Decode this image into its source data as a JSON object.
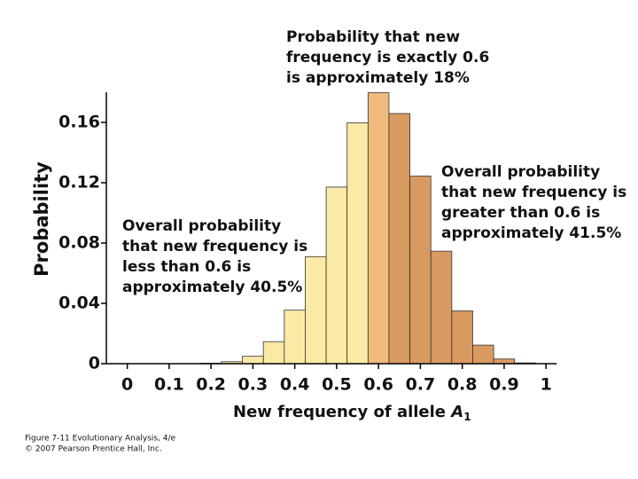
{
  "chart_data": {
    "type": "histogram",
    "bins": [
      -0.025,
      0.025,
      0.075,
      0.125,
      0.175,
      0.225,
      0.275,
      0.325,
      0.375,
      0.425,
      0.475,
      0.525,
      0.575,
      0.625,
      0.675,
      0.725,
      0.775,
      0.825,
      0.875,
      0.925,
      0.975,
      1.025
    ],
    "values": [
      0,
      0,
      0,
      0,
      0.0003,
      0.0013,
      0.0049,
      0.0146,
      0.0355,
      0.071,
      0.1171,
      0.1597,
      0.1797,
      0.1659,
      0.1244,
      0.0746,
      0.035,
      0.0123,
      0.0031,
      0.0005,
      4e-05
    ],
    "colors": [
      "#fbe9a6",
      "#fbe9a6",
      "#fbe9a6",
      "#fbe9a6",
      "#fbe9a6",
      "#fbe9a6",
      "#fbe9a6",
      "#fbe9a6",
      "#fbe9a6",
      "#fbe9a6",
      "#fbe9a6",
      "#fbe9a6",
      "#eebb7c",
      "#d99a62",
      "#d99a62",
      "#d99a62",
      "#d99a62",
      "#d99a62",
      "#d99a62",
      "#d99a62",
      "#d99a62"
    ],
    "xlim": [
      -0.05,
      1.025
    ],
    "ylim": [
      0,
      0.18
    ],
    "xticks": [
      0,
      0.1,
      0.2,
      0.3,
      0.4,
      0.5,
      0.6,
      0.7,
      0.8,
      0.9,
      1
    ],
    "yticks": [
      0,
      0.04,
      0.08,
      0.12,
      0.16
    ],
    "y_label": "Probability",
    "x_label": "New frequency of allele",
    "x_label_symbol": "A",
    "x_label_subscript": "1",
    "annotations": [
      [
        "Probability that new",
        "frequency is exactly 0.6",
        "is approximately 18%"
      ],
      [
        "Overall probability",
        "that new frequency is",
        "greater than 0.6 is",
        "approximately 41.5%"
      ],
      [
        "Overall probability",
        "that new frequency is",
        "less than 0.6 is",
        "approximately 40.5%"
      ]
    ],
    "caption": [
      "Figure 7-11 Evolutionary Analysis, 4/e",
      "© 2007 Pearson Prentice Hall, Inc."
    ]
  }
}
